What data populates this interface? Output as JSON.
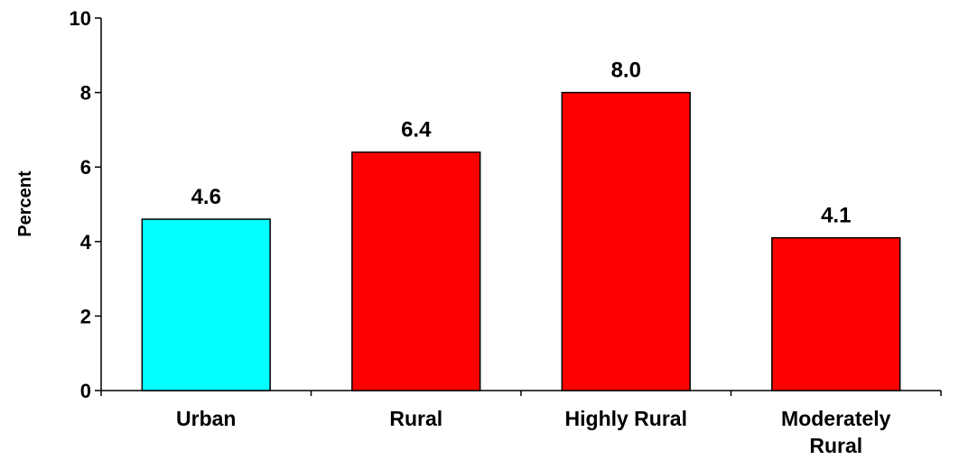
{
  "chart_data": {
    "type": "bar",
    "title": "",
    "xlabel": "",
    "ylabel": "Percent",
    "ylim": [
      0,
      10
    ],
    "yticks": [
      0,
      2,
      4,
      6,
      8,
      10
    ],
    "grid": false,
    "categories": [
      "Urban",
      "Rural",
      "Highly Rural",
      "Moderately Rural"
    ],
    "category_lines": [
      [
        "Urban"
      ],
      [
        "Rural"
      ],
      [
        "Highly Rural"
      ],
      [
        "Moderately",
        "Rural"
      ]
    ],
    "values": [
      4.6,
      6.4,
      8.0,
      4.1
    ],
    "value_labels": [
      "4.6",
      "6.4",
      "8.0",
      "4.1"
    ],
    "bar_colors": [
      "#00FFFF",
      "#FF0000",
      "#FF0000",
      "#FF0000"
    ]
  }
}
